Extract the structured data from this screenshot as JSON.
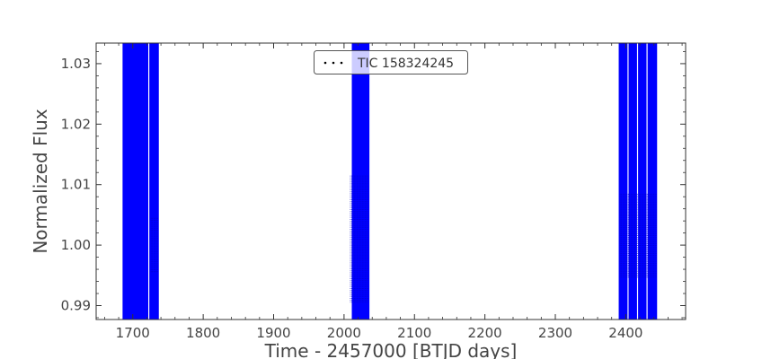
{
  "chart_data": {
    "type": "scatter",
    "title": "",
    "xlabel": "Time - 2457000 [BTJD days]",
    "ylabel": "Normalized Flux",
    "xlim": [
      1648,
      2485
    ],
    "ylim": [
      0.9877,
      1.0334
    ],
    "x_ticks": [
      1700,
      1800,
      1900,
      2000,
      2100,
      2200,
      2300,
      2400
    ],
    "x_tick_labels": [
      "1700",
      "1800",
      "1900",
      "2000",
      "2100",
      "2200",
      "2300",
      "2400"
    ],
    "y_ticks": [
      0.99,
      1.0,
      1.01,
      1.02,
      1.03
    ],
    "y_tick_labels": [
      "0.99",
      "1.00",
      "1.01",
      "1.02",
      "1.03"
    ],
    "grid": false,
    "legend_position": "top-center",
    "series": [
      {
        "name": "TIC 158324245",
        "color": "#0000ff",
        "marker": "dot",
        "segments": [
          {
            "x_start": 1685.5,
            "x_end": 1722.0,
            "y_low": 0.9877,
            "y_high": 1.0334
          },
          {
            "x_start": 1723.5,
            "x_end": 1737.0,
            "y_low": 0.9877,
            "y_high": 1.0334
          },
          {
            "x_start": 2011.0,
            "x_end": 2036.0,
            "y_low": 0.9877,
            "y_high": 1.0334
          },
          {
            "x_start": 2390.0,
            "x_end": 2402.5,
            "y_low": 0.9877,
            "y_high": 1.0334
          },
          {
            "x_start": 2404.0,
            "x_end": 2416.0,
            "y_low": 0.9877,
            "y_high": 1.0334
          },
          {
            "x_start": 2417.5,
            "x_end": 2429.5,
            "y_low": 0.9877,
            "y_high": 1.0334
          },
          {
            "x_start": 2431.0,
            "x_end": 2444.5,
            "y_low": 0.9877,
            "y_high": 1.0334
          }
        ],
        "dense_clusters": [
          {
            "x_start": 1726.0,
            "x_end": 1737.0,
            "y_low": 0.9955,
            "y_high": 1.0045
          },
          {
            "x_start": 2009.0,
            "x_end": 2034.0,
            "y_low": 0.9905,
            "y_high": 1.0115
          },
          {
            "x_start": 2392.0,
            "x_end": 2444.0,
            "y_low": 0.9945,
            "y_high": 1.0085
          }
        ]
      }
    ]
  }
}
